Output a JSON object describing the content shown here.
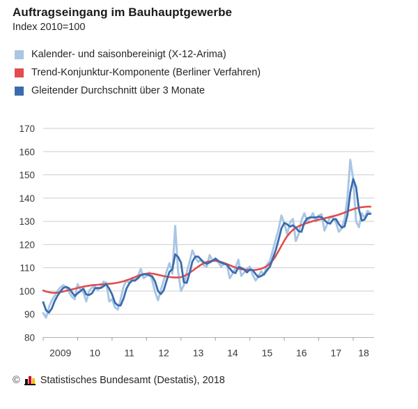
{
  "title": "Auftragseingang im Bauhauptgewerbe",
  "subtitle": "Index 2010=100",
  "legend": [
    {
      "label": "Kalender- und saisonbereinigt (X-12-Arima)",
      "color": "#a9c6e3"
    },
    {
      "label": "Trend-Konjunktur-Komponente (Berliner Verfahren)",
      "color": "#e24c4e"
    },
    {
      "label": "Gleitender Durchschnitt über 3 Monate",
      "color": "#3a6cad"
    }
  ],
  "footer": {
    "copyright": "©",
    "source": "Statistisches Bundesamt (Destatis), 2018"
  },
  "chart_data": {
    "type": "line",
    "title": "Auftragseingang im Bauhauptgewerbe",
    "subtitle": "Index 2010=100",
    "x_monthly_from": "2009-01",
    "x_monthly_to": "2018-07",
    "x_tick_labels": [
      "2009",
      "10",
      "11",
      "12",
      "13",
      "14",
      "15",
      "16",
      "17",
      "18"
    ],
    "y_ticks": [
      80,
      90,
      100,
      110,
      120,
      130,
      140,
      150,
      160,
      170
    ],
    "ylim": [
      80,
      170
    ],
    "y_highlight": {
      "value": 100,
      "color": "#cc3333"
    },
    "grid": "horizontal",
    "legend_position": "top-left",
    "series": [
      {
        "name": "Kalender- und saisonbereinigt (X-12-Arima)",
        "color": "#a9c6e3",
        "role": "light",
        "values": [
          90.5,
          88.5,
          93.0,
          96.0,
          98.0,
          100.0,
          101.5,
          102.5,
          101.5,
          99.5,
          97.5,
          96.5,
          103.0,
          100.5,
          99.5,
          95.5,
          100.0,
          101.5,
          102.0,
          100.5,
          101.5,
          104.0,
          103.5,
          95.5,
          96.5,
          93.0,
          92.0,
          96.5,
          102.0,
          104.5,
          103.5,
          105.5,
          104.5,
          106.5,
          109.5,
          105.5,
          106.5,
          108.0,
          104.5,
          99.5,
          96.0,
          100.5,
          104.5,
          108.5,
          112.0,
          107.5,
          128.0,
          108.5,
          100.0,
          102.5,
          108.0,
          112.5,
          117.5,
          114.5,
          112.5,
          113.5,
          111.0,
          110.5,
          115.5,
          113.0,
          113.5,
          112.5,
          110.5,
          112.0,
          111.5,
          105.5,
          107.5,
          110.0,
          113.5,
          106.5,
          108.0,
          109.5,
          110.5,
          107.0,
          104.5,
          106.5,
          108.5,
          107.0,
          111.5,
          113.0,
          117.5,
          122.0,
          126.5,
          132.5,
          129.0,
          124.5,
          129.5,
          131.0,
          121.5,
          124.5,
          130.5,
          133.5,
          130.0,
          131.5,
          133.5,
          130.0,
          132.5,
          133.0,
          126.0,
          129.0,
          132.0,
          131.5,
          129.5,
          125.5,
          127.0,
          131.0,
          140.0,
          156.5,
          148.0,
          130.0,
          127.5,
          133.5,
          131.5,
          134.5,
          133.5
        ]
      },
      {
        "name": "Trend-Konjunktur-Komponente (Berliner Verfahren)",
        "color": "#e24c4e",
        "role": "trend",
        "values": [
          100.2,
          99.8,
          99.5,
          99.3,
          99.2,
          99.3,
          99.5,
          99.8,
          100.1,
          100.4,
          100.7,
          101.0,
          101.3,
          101.6,
          101.9,
          102.1,
          102.3,
          102.5,
          102.6,
          102.7,
          102.8,
          102.9,
          103.0,
          103.1,
          103.2,
          103.4,
          103.6,
          103.9,
          104.2,
          104.6,
          105.0,
          105.5,
          106.0,
          106.5,
          107.0,
          107.3,
          107.5,
          107.6,
          107.5,
          107.3,
          107.0,
          106.7,
          106.4,
          106.2,
          106.0,
          105.9,
          105.8,
          105.8,
          106.0,
          106.4,
          107.0,
          107.8,
          108.7,
          109.6,
          110.5,
          111.3,
          112.0,
          112.5,
          112.8,
          113.0,
          113.0,
          112.8,
          112.5,
          112.1,
          111.6,
          111.1,
          110.6,
          110.1,
          109.7,
          109.4,
          109.2,
          109.1,
          109.0,
          109.0,
          109.1,
          109.3,
          109.6,
          110.1,
          110.8,
          111.8,
          113.2,
          115.0,
          117.2,
          119.5,
          121.7,
          123.6,
          125.1,
          126.3,
          127.2,
          127.9,
          128.4,
          128.9,
          129.3,
          129.7,
          130.1,
          130.4,
          130.7,
          131.0,
          131.3,
          131.6,
          131.9,
          132.2,
          132.5,
          132.9,
          133.3,
          133.8,
          134.3,
          134.8,
          135.2,
          135.6,
          135.9,
          136.1,
          136.2,
          136.3,
          136.3
        ]
      },
      {
        "name": "Gleitender Durchschnitt über 3 Monate",
        "color": "#3a6cad",
        "role": "ma3",
        "values": [
          95.2,
          91.7,
          90.7,
          92.5,
          95.7,
          98.0,
          99.8,
          101.3,
          101.8,
          101.2,
          99.5,
          97.8,
          99.0,
          100.0,
          101.0,
          98.5,
          98.3,
          99.0,
          101.2,
          101.3,
          101.3,
          102.0,
          103.0,
          101.0,
          98.5,
          95.0,
          93.8,
          93.8,
          96.8,
          101.0,
          103.3,
          104.5,
          104.5,
          105.5,
          106.8,
          107.2,
          107.2,
          106.7,
          106.3,
          104.0,
          100.0,
          98.7,
          100.3,
          104.5,
          108.3,
          109.3,
          115.8,
          114.7,
          112.2,
          103.7,
          103.5,
          107.7,
          112.7,
          114.8,
          114.8,
          113.5,
          112.3,
          111.7,
          112.3,
          113.0,
          114.0,
          113.0,
          112.2,
          111.7,
          111.3,
          109.7,
          108.2,
          107.7,
          110.3,
          110.0,
          109.3,
          108.0,
          109.3,
          109.0,
          107.3,
          106.0,
          106.5,
          107.3,
          109.0,
          110.5,
          114.0,
          117.5,
          122.0,
          127.0,
          129.3,
          128.7,
          127.7,
          128.3,
          127.3,
          125.7,
          125.5,
          129.5,
          131.3,
          131.7,
          131.7,
          131.7,
          132.0,
          131.8,
          130.5,
          129.3,
          129.0,
          130.8,
          131.0,
          128.8,
          127.3,
          127.8,
          132.7,
          142.5,
          148.2,
          144.8,
          135.2,
          130.3,
          130.8,
          133.2,
          133.2
        ]
      }
    ]
  }
}
